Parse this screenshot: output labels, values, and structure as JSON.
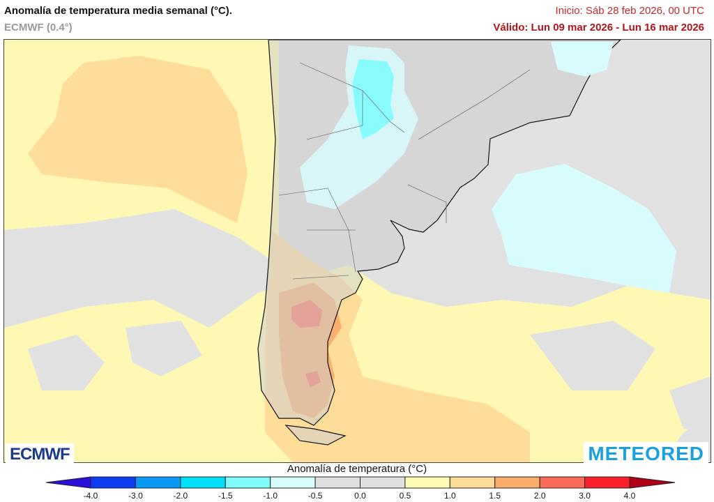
{
  "header": {
    "title": "Anomalía de temperatura media semanal (°C).",
    "model": "ECMWF (0.4°)",
    "init": "Inicio: Sáb 28 feb 2026, 00 UTC",
    "valid": "Válido: Lun 09 mar 2026 - Lun 16 mar 2026"
  },
  "logos": {
    "left": "ECMWF",
    "right": "METEORED"
  },
  "colorbar": {
    "title": "Anomalía de temperatura (°C)",
    "ticks": [
      "-4.0",
      "-3.0",
      "-2.0",
      "-1.5",
      "-1.0",
      "-0.5",
      "0.0",
      "0.5",
      "1.0",
      "1.5",
      "2.0",
      "3.0",
      "4.0"
    ],
    "colors": [
      "#0b3cf0",
      "#0a9af6",
      "#00e0fa",
      "#80fcfc",
      "#d8fcfc",
      "#e0e0e0",
      "#e0e0e0",
      "#fffab4",
      "#fddc96",
      "#fcac6a",
      "#fb6b5a",
      "#fa202c"
    ],
    "under_color": "#2a10d8",
    "over_color": "#b00018"
  },
  "map_colors": {
    "neutral": "#e1e1e1",
    "land": "#cdcdcd",
    "a05": "#fff8b4",
    "a10": "#fddd98",
    "a15": "#fcae6c",
    "a20": "#fb6d5a",
    "m05": "#d8fcfd",
    "m15": "#80fcfc"
  }
}
